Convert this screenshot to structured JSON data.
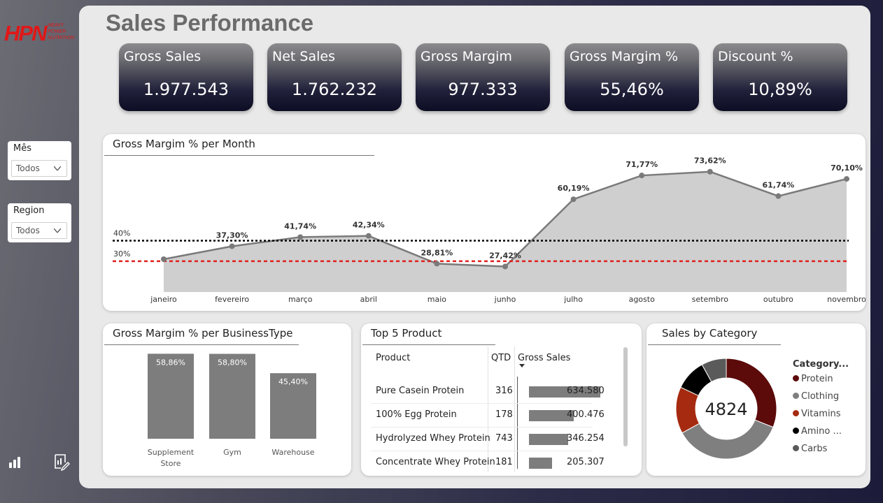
{
  "brand": {
    "logo_text": "HPN",
    "logo_sub": "HEAVY POWER NUTRITION",
    "logo_color": "#e01818"
  },
  "page": {
    "title": "Sales Performance"
  },
  "filters": [
    {
      "label": "Mês",
      "value": "Todos"
    },
    {
      "label": "Region",
      "value": "Todos"
    }
  ],
  "nav_icons": [
    "bar-chart-icon",
    "report-edit-icon"
  ],
  "kpis": [
    {
      "label": "Gross Sales",
      "value": "1.977.543"
    },
    {
      "label": "Net Sales",
      "value": "1.762.232"
    },
    {
      "label": "Gross Margim",
      "value": "977.333"
    },
    {
      "label": "Gross Margim %",
      "value": "55,46%"
    },
    {
      "label": "Discount %",
      "value": "10,89%"
    }
  ],
  "chart_data": [
    {
      "type": "area",
      "title": "Gross Margim % per Month",
      "categories": [
        "janeiro",
        "fevereiro",
        "março",
        "abril",
        "maio",
        "junho",
        "julho",
        "agosto",
        "setembro",
        "outubro",
        "novembro"
      ],
      "values": [
        31,
        37.3,
        41.74,
        42.34,
        28.81,
        27.42,
        60.19,
        71.77,
        73.62,
        61.74,
        70.1
      ],
      "data_labels": [
        "",
        "37,30%",
        "41,74%",
        "42,34%",
        "28,81%",
        "27,42%",
        "60,19%",
        "71,77%",
        "73,62%",
        "61,74%",
        "70,10%"
      ],
      "reference_lines": [
        {
          "label": "40%",
          "value": 40,
          "color": "#000000",
          "style": "dotted"
        },
        {
          "label": "30%",
          "value": 30,
          "color": "#e02020",
          "style": "dashed"
        }
      ],
      "line_color": "#7a7a7a",
      "fill_color": "#cfcfcf",
      "ylim": [
        15,
        80
      ]
    },
    {
      "type": "bar",
      "title": "Gross Margim % per BusinessType",
      "categories": [
        "Supplement Store",
        "Gym",
        "Warehouse"
      ],
      "category_lines": [
        [
          "Supplement",
          "Store"
        ],
        [
          "Gym"
        ],
        [
          "Warehouse"
        ]
      ],
      "values": [
        58.86,
        58.8,
        45.4
      ],
      "data_labels": [
        "58,86%",
        "58,80%",
        "45,40%"
      ],
      "bar_color": "#7d7d7d",
      "ylim": [
        0,
        60
      ]
    },
    {
      "type": "table",
      "title": "Top 5 Product",
      "columns": [
        "Product",
        "QTD",
        "Gross Sales"
      ],
      "rows": [
        {
          "product": "Pure Casein Protein",
          "qtd": "316",
          "gross_sales": "634.580",
          "value": 634580
        },
        {
          "product": "100% Egg Protein",
          "qtd": "178",
          "gross_sales": "400.476",
          "value": 400476
        },
        {
          "product": "Hydrolyzed Whey Protein",
          "qtd": "743",
          "gross_sales": "346.254",
          "value": 346254
        },
        {
          "product": "Concentrate Whey Protein",
          "qtd": "181",
          "gross_sales": "205.307",
          "value": 205307
        }
      ],
      "max_value": 634580
    },
    {
      "type": "pie",
      "title": "Sales by Category",
      "center_label": "4824",
      "legend_title": "Category...",
      "slices": [
        {
          "name": "Protein",
          "value": 31,
          "color": "#5c0a0a"
        },
        {
          "name": "Clothing",
          "value": 36,
          "color": "#7f7f7f"
        },
        {
          "name": "Vitamins",
          "value": 15,
          "color": "#a52a10"
        },
        {
          "name": "Amino ...",
          "value": 10,
          "color": "#000000"
        },
        {
          "name": "Carbs",
          "value": 8,
          "color": "#5a5a5a"
        }
      ]
    }
  ]
}
